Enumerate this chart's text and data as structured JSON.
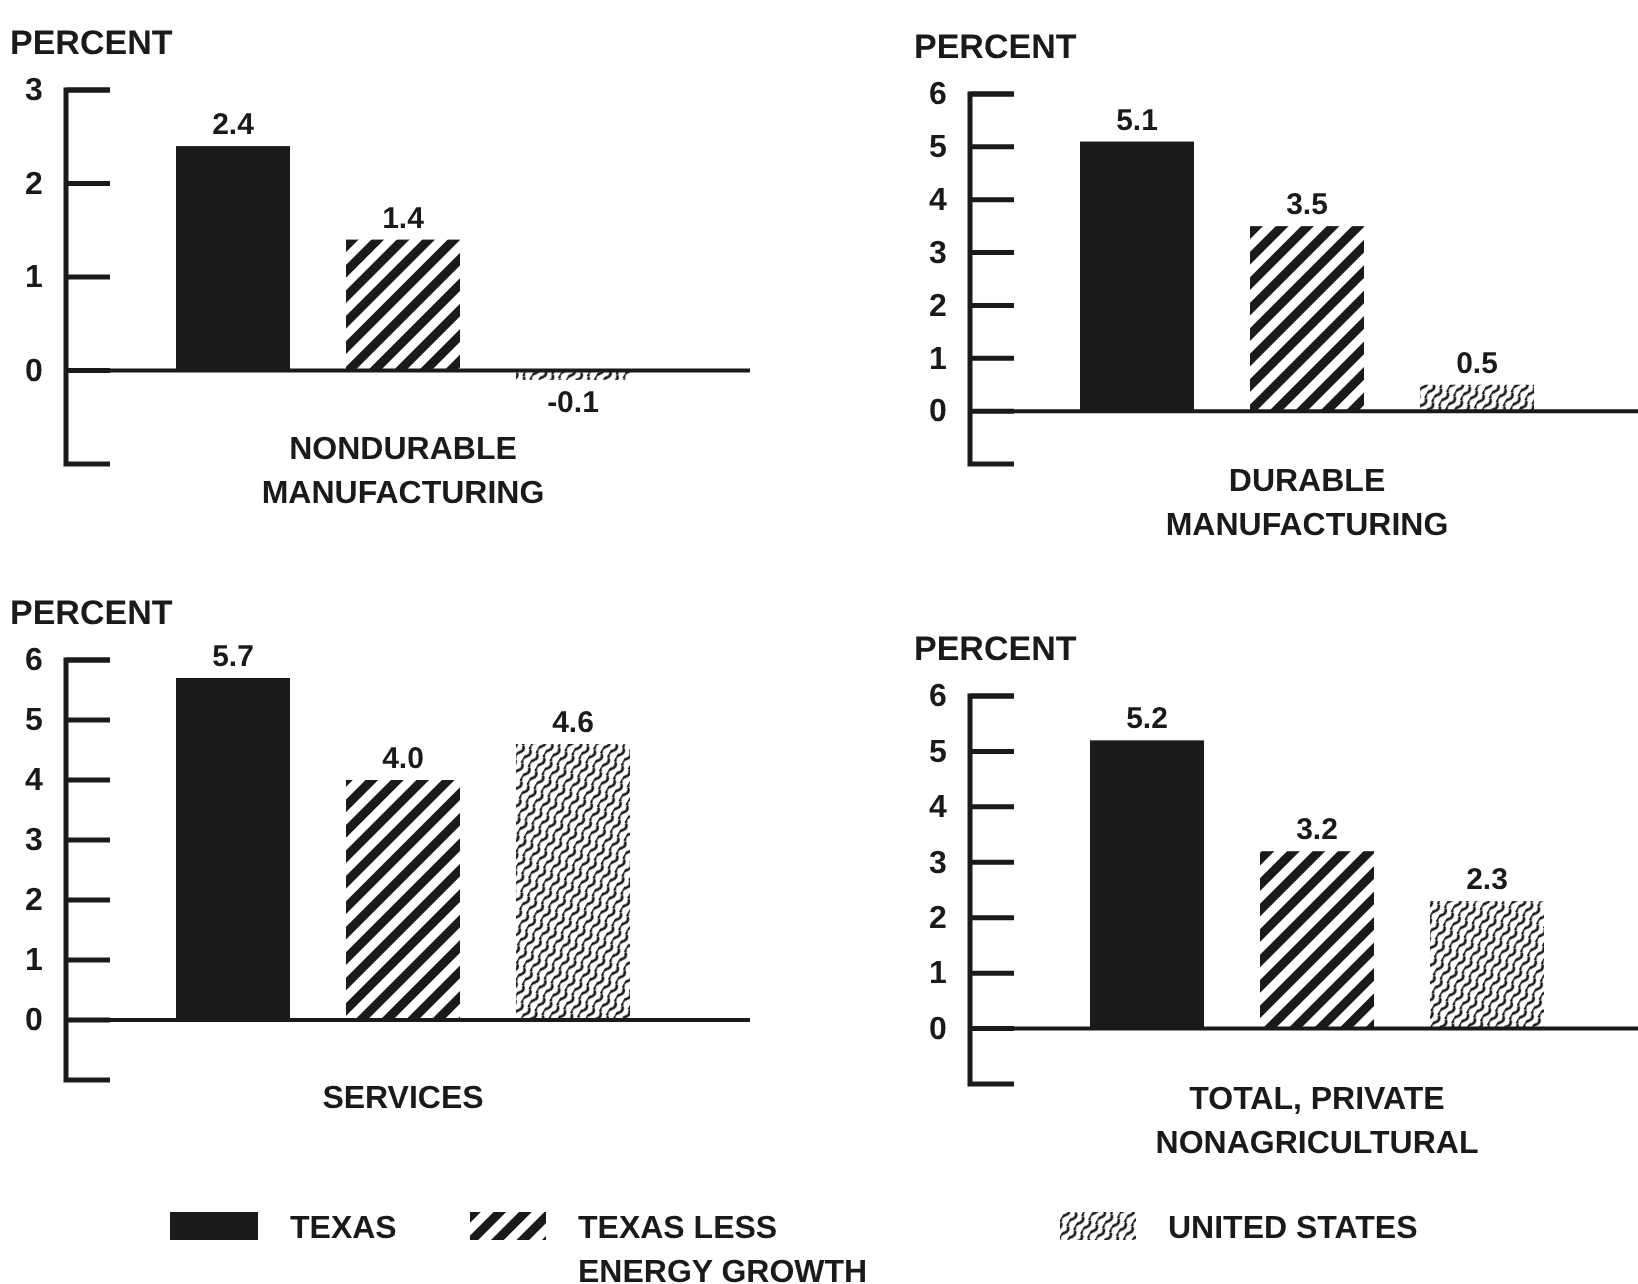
{
  "chart_data": [
    {
      "type": "bar",
      "xlabel": "NONDURABLE MANUFACTURING",
      "ylabel": "PERCENT",
      "categories": [
        null
      ],
      "ylim": [
        -1,
        3
      ],
      "yticks": [
        0,
        1,
        2,
        3
      ],
      "legend": "bottom",
      "ref_lines": [
        {
          "axis": "y",
          "value": 0
        }
      ],
      "series": [
        {
          "name": "TEXAS",
          "color": "#1a1a1a",
          "values": [
            2.4
          ],
          "value_labels": [
            "2.4"
          ]
        },
        {
          "name": "TEXAS LESS ENERGY GROWTH",
          "color": "#1a1a1a",
          "values": [
            1.4
          ],
          "value_labels": [
            "1.4"
          ]
        },
        {
          "name": "UNITED STATES",
          "color": "#1a1a1a",
          "values": [
            -0.1
          ],
          "value_labels": [
            "-0.1"
          ]
        }
      ]
    },
    {
      "type": "bar",
      "xlabel": "DURABLE MANUFACTURING",
      "ylabel": "PERCENT",
      "categories": [
        null
      ],
      "ylim": [
        -1,
        6
      ],
      "yticks": [
        0,
        1,
        2,
        3,
        4,
        5,
        6
      ],
      "ref_lines": [
        {
          "axis": "y",
          "value": 0
        }
      ],
      "series": [
        {
          "color": "#1a1a1a",
          "values": [
            5.1
          ],
          "value_labels": [
            "5.1"
          ]
        },
        {
          "color": "#1a1a1a",
          "values": [
            3.5
          ],
          "value_labels": [
            "3.5"
          ]
        },
        {
          "color": "#1a1a1a",
          "values": [
            0.5
          ],
          "value_labels": [
            "0.5"
          ]
        }
      ]
    },
    {
      "type": "bar",
      "xlabel": "SERVICES",
      "ylabel": "PERCENT",
      "categories": [
        null
      ],
      "ylim": [
        -1,
        6
      ],
      "yticks": [
        0,
        1,
        2,
        3,
        4,
        5,
        6
      ],
      "ref_lines": [
        {
          "axis": "y",
          "value": 0
        }
      ],
      "series": [
        {
          "color": "#1a1a1a",
          "values": [
            5.7
          ],
          "value_labels": [
            "5.7"
          ]
        },
        {
          "color": "#1a1a1a",
          "values": [
            4.0
          ],
          "value_labels": [
            "4.0"
          ]
        },
        {
          "color": "#1a1a1a",
          "values": [
            4.6
          ],
          "value_labels": [
            "4.6"
          ]
        }
      ]
    },
    {
      "type": "bar",
      "xlabel": "TOTAL, PRIVATE NONAGRICULTURAL",
      "ylabel": "PERCENT",
      "categories": [
        null
      ],
      "ylim": [
        -1,
        6
      ],
      "yticks": [
        0,
        1,
        2,
        3,
        4,
        5,
        6
      ],
      "ref_lines": [
        {
          "axis": "y",
          "value": 0
        }
      ],
      "series": [
        {
          "color": "#1a1a1a",
          "values": [
            5.2
          ],
          "value_labels": [
            "5.2"
          ]
        },
        {
          "color": "#1a1a1a",
          "values": [
            3.2
          ],
          "value_labels": [
            "3.2"
          ]
        },
        {
          "color": "#1a1a1a",
          "values": [
            2.3
          ],
          "value_labels": [
            "2.3"
          ]
        }
      ]
    }
  ]
}
